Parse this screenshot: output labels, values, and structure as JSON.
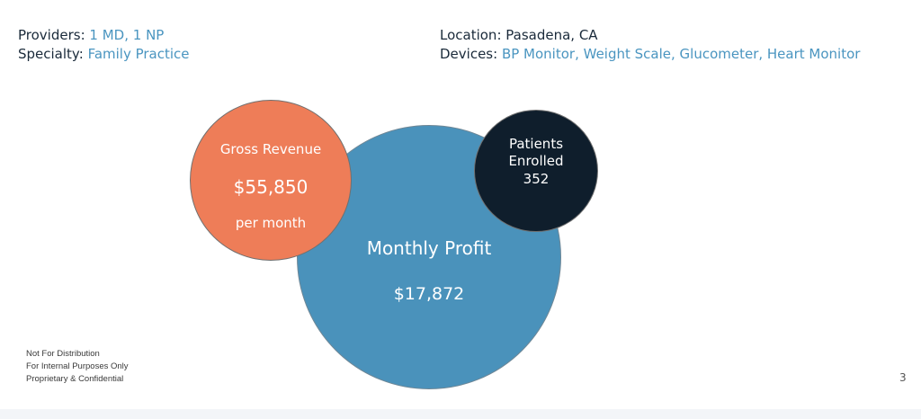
{
  "header_left": {
    "providers_label": "Providers:",
    "providers_value": "1 MD, 1 NP",
    "specialty_label": "Specialty:",
    "specialty_value": "Family Practice"
  },
  "header_right": {
    "location_label": "Location:",
    "location_value": "Pasadena, CA",
    "devices_label": "Devices:",
    "devices_value": "BP Monitor, Weight Scale, Glucometer, Heart Monitor"
  },
  "gross_revenue": {
    "label": "Gross Revenue",
    "value": "$55,850",
    "sub": "per month",
    "color": "#ee7d58"
  },
  "monthly_profit": {
    "label": "Monthly Profit",
    "value": "$17,872",
    "color": "#4a92bb"
  },
  "patients_enrolled": {
    "label_line1": "Patients",
    "label_line2": "Enrolled",
    "value": "352",
    "color": "#0f1e2c"
  },
  "footer_notes": [
    "Not For Distribution",
    "For Internal Purposes Only",
    "Proprietary & Confidential"
  ],
  "page_number": "3",
  "colors": {
    "accent_text": "#4a95c0",
    "dark_text": "#1a2a3a"
  }
}
